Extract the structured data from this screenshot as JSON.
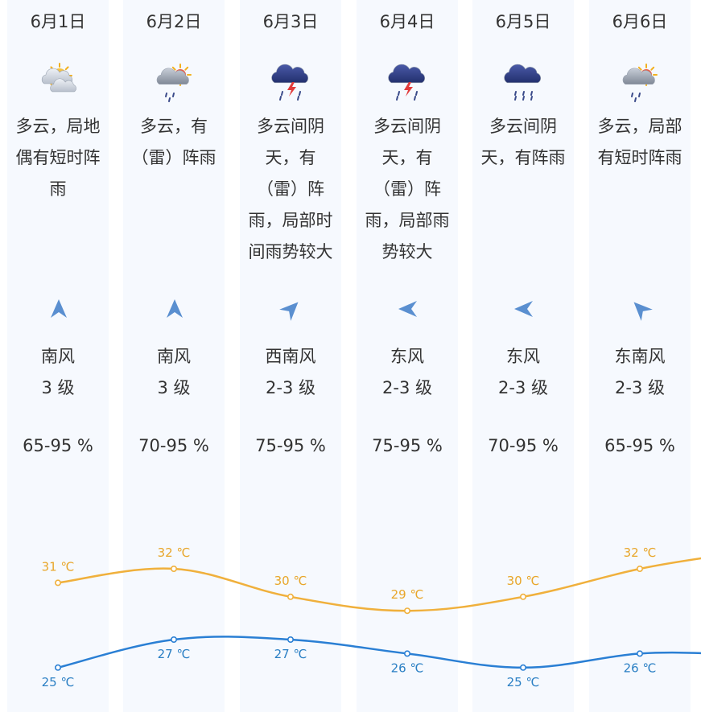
{
  "days": [
    {
      "date": "6月1日",
      "icon": "partly-cloudy-sun-icon",
      "desc_lines": [
        "多云，局地",
        "偶有短时阵",
        "雨"
      ],
      "wind_dir": "南风",
      "wind_level": "3 级",
      "wind_angle": 0,
      "humidity": "65-95 %",
      "high": "31 ℃",
      "low": "25 ℃"
    },
    {
      "date": "6月2日",
      "icon": "sun-cloud-rain-icon",
      "desc_lines": [
        "多云，有",
        "（雷）阵雨"
      ],
      "wind_dir": "南风",
      "wind_level": "3 级",
      "wind_angle": 0,
      "humidity": "70-95 %",
      "high": "32 ℃",
      "low": "27 ℃"
    },
    {
      "date": "6月3日",
      "icon": "thunderstorm-icon",
      "desc_lines": [
        "多云间阴",
        "天，有",
        "（雷）阵",
        "雨，局部时",
        "间雨势较大"
      ],
      "wind_dir": "西南风",
      "wind_level": "2-3 级",
      "wind_angle": 45,
      "humidity": "75-95 %",
      "high": "30 ℃",
      "low": "27 ℃"
    },
    {
      "date": "6月4日",
      "icon": "thunderstorm-icon",
      "desc_lines": [
        "多云间阴",
        "天，有",
        "（雷）阵",
        "雨，局部雨",
        "势较大"
      ],
      "wind_dir": "东风",
      "wind_level": "2-3 级",
      "wind_angle": -90,
      "humidity": "75-95 %",
      "high": "29 ℃",
      "low": "26 ℃"
    },
    {
      "date": "6月5日",
      "icon": "rain-cloud-icon",
      "desc_lines": [
        "多云间阴",
        "天，有阵雨"
      ],
      "wind_dir": "东风",
      "wind_level": "2-3 级",
      "wind_angle": -90,
      "humidity": "70-95 %",
      "high": "30 ℃",
      "low": "25 ℃"
    },
    {
      "date": "6月6日",
      "icon": "sun-cloud-rain-icon",
      "desc_lines": [
        "多云，局部",
        "有短时阵雨"
      ],
      "wind_dir": "东南风",
      "wind_level": "2-3 级",
      "wind_angle": -45,
      "humidity": "65-95 %",
      "high": "32 ℃",
      "low": "26 ℃"
    }
  ],
  "chart_data": {
    "type": "line",
    "categories": [
      "6月1日",
      "6月2日",
      "6月3日",
      "6月4日",
      "6月5日",
      "6月6日"
    ],
    "series": [
      {
        "key": "high",
        "values": [
          31,
          32,
          30,
          29,
          30,
          32
        ],
        "color": "#f0b03c"
      },
      {
        "key": "low",
        "values": [
          25,
          27,
          27,
          26,
          25,
          26
        ],
        "color": "#2a7fd4"
      }
    ]
  },
  "colors": {
    "high_label": "#e8a62a",
    "low_label": "#2a7fc4",
    "column_bg": "#f6f9fe",
    "arrow": "#5a8fd0"
  }
}
